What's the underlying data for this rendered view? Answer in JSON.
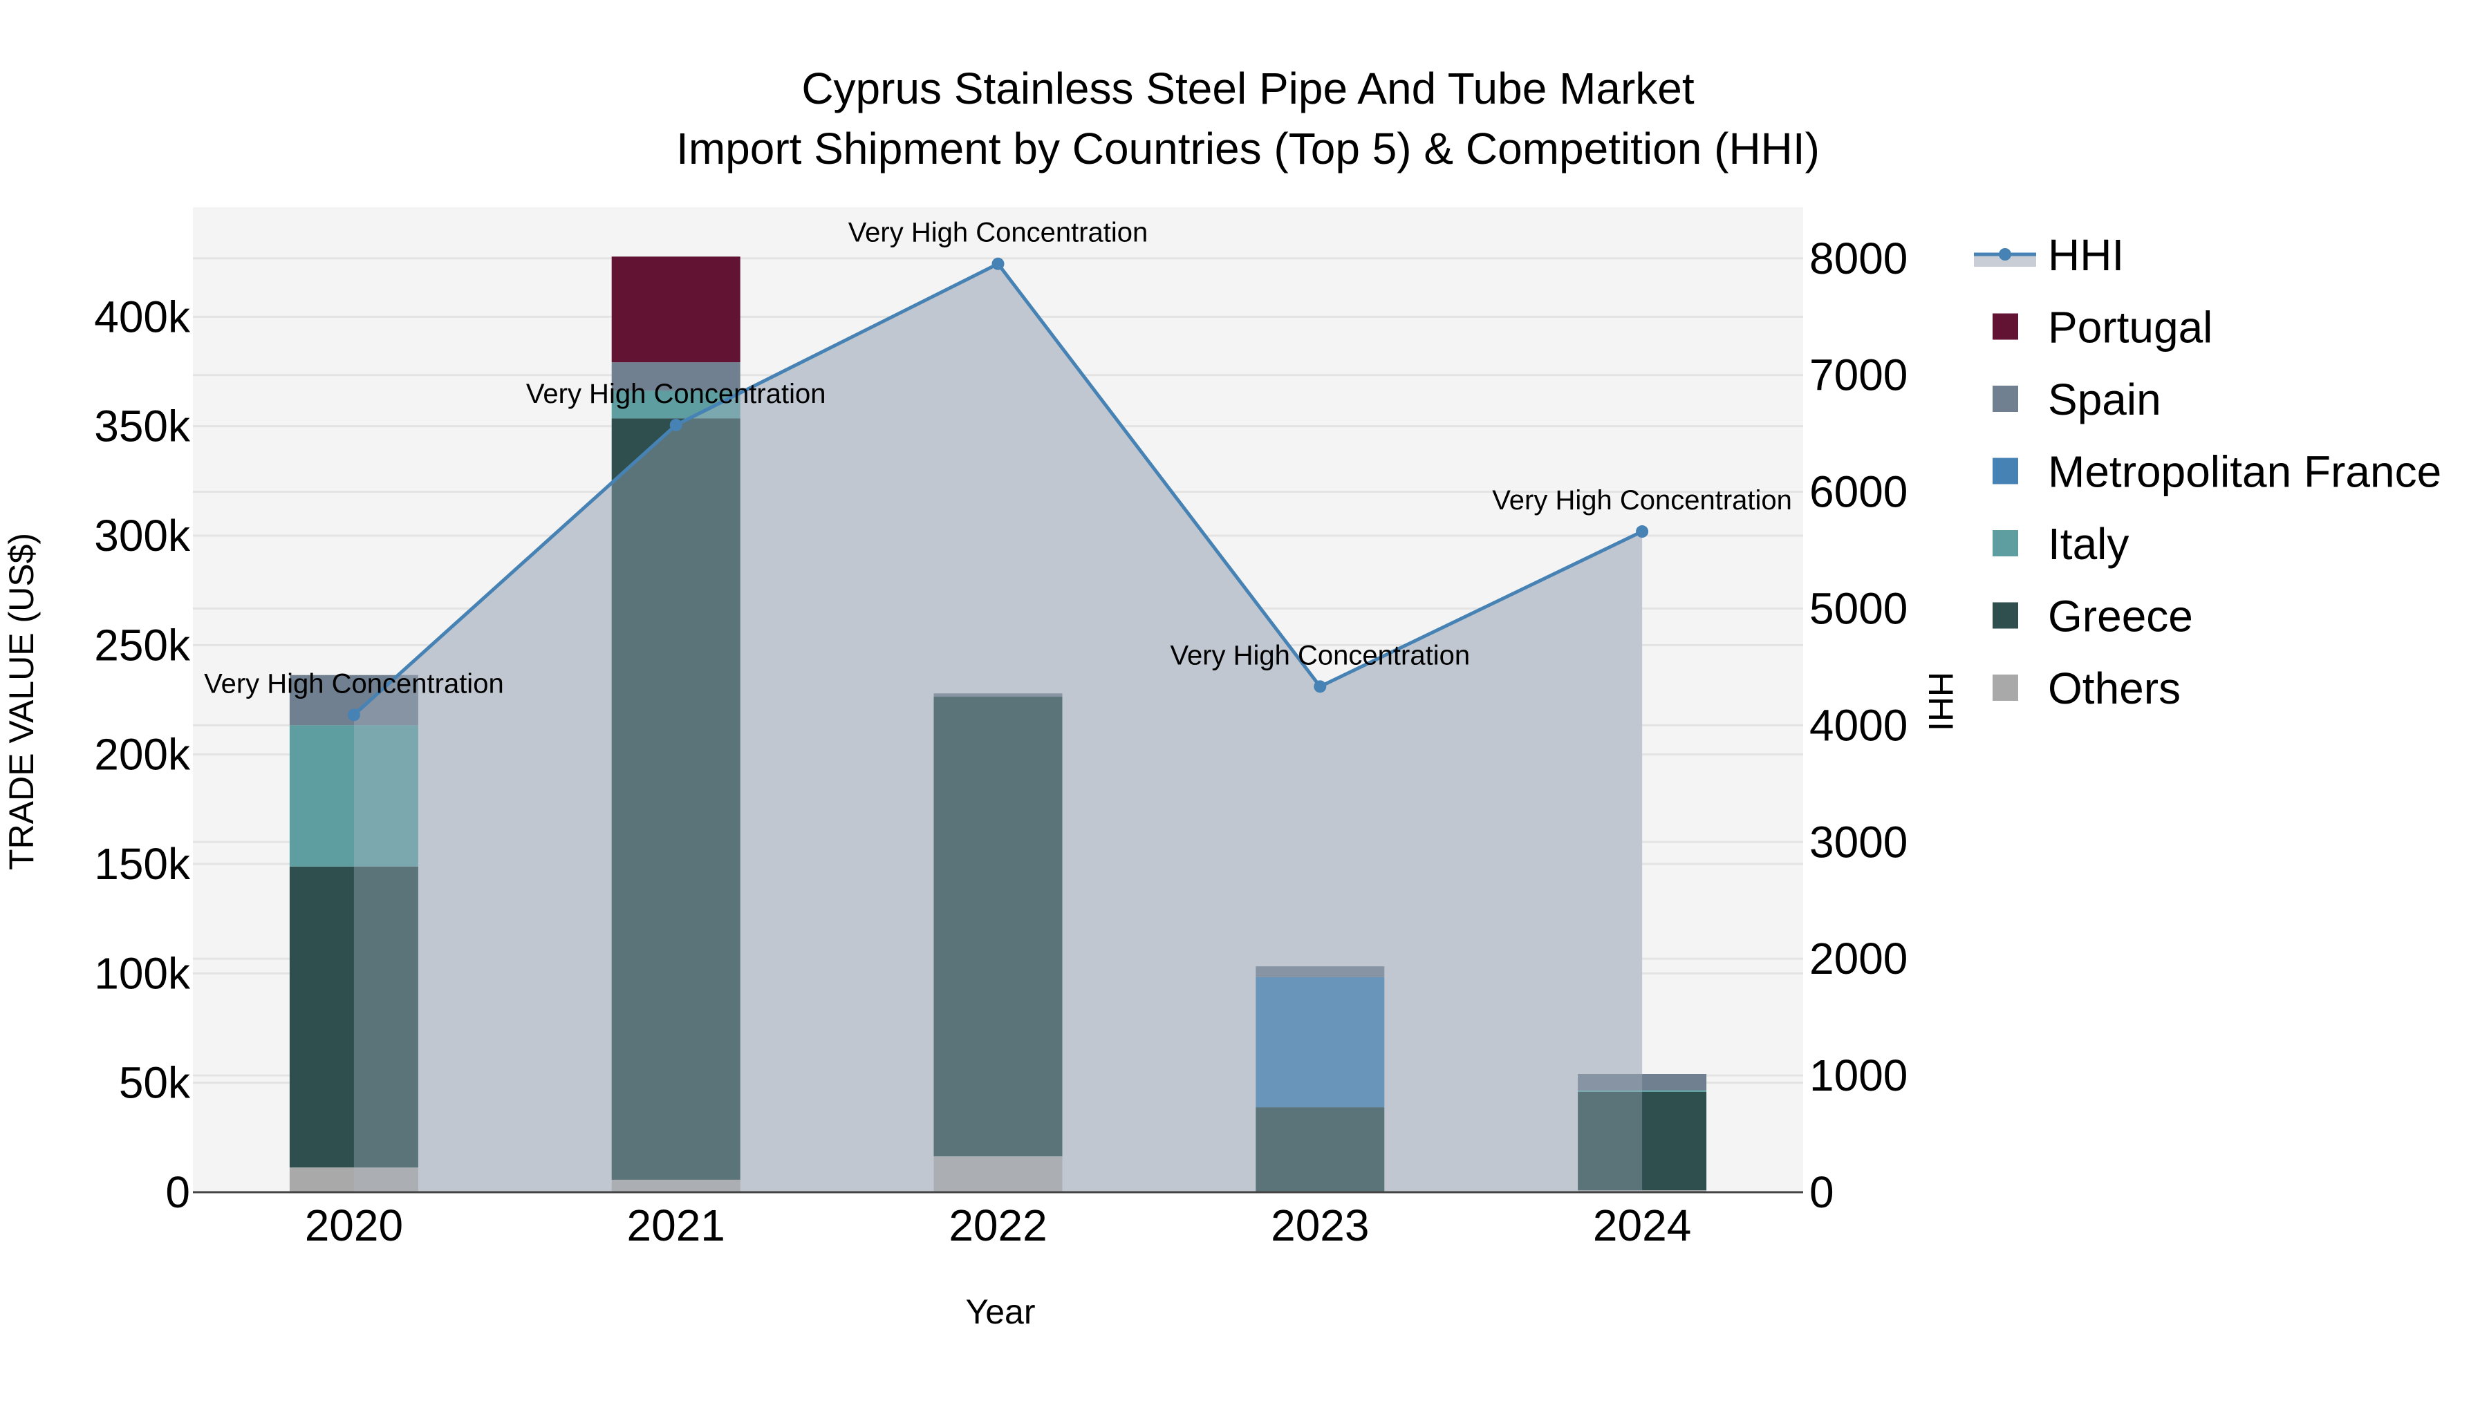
{
  "chart_data": {
    "type": "bar",
    "subtype": "stacked bar + line (secondary axis) with filled area",
    "title": "Cyprus Stainless Steel Pipe And Tube Market",
    "subtitle": "Import Shipment by Countries (Top 5) & Competition (HHI)",
    "xlabel": "Year",
    "ylabel": "TRADE VALUE (US$)",
    "y2label": "HHI",
    "categories": [
      "2020",
      "2021",
      "2022",
      "2023",
      "2024"
    ],
    "ylim": [
      0,
      450000
    ],
    "y2lim": [
      0,
      8437
    ],
    "yticks": [
      0,
      50000,
      100000,
      150000,
      200000,
      250000,
      300000,
      350000,
      400000
    ],
    "yticklabels": [
      "0",
      "50k",
      "100k",
      "150k",
      "200k",
      "250k",
      "300k",
      "350k",
      "400k"
    ],
    "y2ticks": [
      0,
      1000,
      2000,
      3000,
      4000,
      5000,
      6000,
      7000,
      8000
    ],
    "y2ticklabels": [
      "0",
      "1000",
      "2000",
      "3000",
      "4000",
      "5000",
      "6000",
      "7000",
      "8000"
    ],
    "grid": true,
    "legend_position": "right",
    "stack_order_bottom_to_top": [
      "Others",
      "Greece",
      "Italy",
      "Metropolitan France",
      "Spain",
      "Portugal"
    ],
    "series": [
      {
        "name": "Others",
        "color": "#a9a9a9",
        "values": [
          11300,
          5700,
          16400,
          300,
          900
        ]
      },
      {
        "name": "Greece",
        "color": "#2f4f4f",
        "values": [
          137500,
          347900,
          210000,
          38500,
          44900
        ]
      },
      {
        "name": "Italy",
        "color": "#5f9ea0",
        "values": [
          64600,
          12600,
          0,
          0,
          800
        ]
      },
      {
        "name": "Metropolitan France",
        "color": "#4682b4",
        "values": [
          0,
          0,
          0,
          59500,
          0
        ]
      },
      {
        "name": "Spain",
        "color": "#708090",
        "values": [
          22900,
          13000,
          1500,
          4900,
          7400
        ]
      },
      {
        "name": "Portugal",
        "color": "#621334",
        "values": [
          0,
          48300,
          0,
          0,
          0
        ]
      }
    ],
    "totals": [
      236300,
      427500,
      227900,
      103200,
      54000
    ],
    "line_series": {
      "name": "HHI",
      "axis": "y2",
      "color": "#4682b4",
      "fill_color": "rgba(176,186,201,0.6)",
      "values": [
        4089,
        6572,
        7953,
        4332,
        5660
      ]
    },
    "annotations": [
      {
        "x": "2020",
        "text": "Very High Concentration"
      },
      {
        "x": "2021",
        "text": "Very High Concentration"
      },
      {
        "x": "2022",
        "text": "Very High Concentration"
      },
      {
        "x": "2023",
        "text": "Very High Concentration"
      },
      {
        "x": "2024",
        "text": "Very High Concentration"
      }
    ]
  },
  "legend": {
    "items": [
      {
        "label": "HHI",
        "kind": "line",
        "color": "#4682b4"
      },
      {
        "label": "Portugal",
        "kind": "box",
        "color": "#621334"
      },
      {
        "label": "Spain",
        "kind": "box",
        "color": "#708090"
      },
      {
        "label": "Metropolitan France",
        "kind": "box",
        "color": "#4682b4"
      },
      {
        "label": "Italy",
        "kind": "box",
        "color": "#5f9ea0"
      },
      {
        "label": "Greece",
        "kind": "box",
        "color": "#2f4f4f"
      },
      {
        "label": "Others",
        "kind": "box",
        "color": "#a9a9a9"
      }
    ]
  },
  "colors": {
    "plot_background": "#f4f4f4",
    "grid": "#e3e3e3",
    "axis_line": "#444444"
  }
}
